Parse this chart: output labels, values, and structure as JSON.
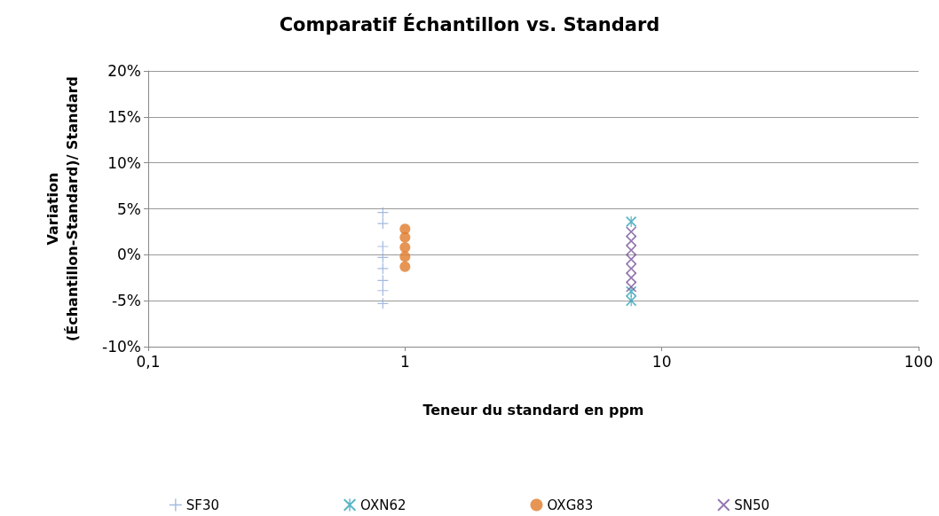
{
  "chart_data": {
    "type": "scatter",
    "title": "Comparatif Échantillon vs. Standard",
    "xlabel": "Teneur du standard en ppm",
    "ylabel": "Variation\n(Échantillon-Standard)/ Standard",
    "log": "x",
    "xlim": [
      0.1,
      100
    ],
    "xticks": [
      {
        "value": 0.1,
        "label": "0,1"
      },
      1,
      10,
      100
    ],
    "ylim": [
      -10,
      20
    ],
    "yticks": [
      {
        "value": -10,
        "label": "-10%"
      },
      {
        "value": -5,
        "label": "-5%"
      },
      {
        "value": 0,
        "label": "0%"
      },
      {
        "value": 5,
        "label": "5%"
      },
      {
        "value": 10,
        "label": "10%"
      },
      {
        "value": 15,
        "label": "15%"
      },
      {
        "value": 20,
        "label": "20%"
      }
    ],
    "grid": "y",
    "legend": "bottom",
    "series": [
      {
        "name": "SF30",
        "color": "#8ea9d8",
        "marker": "cross",
        "x": [
          0.82,
          0.82,
          0.82,
          0.82,
          0.82,
          0.82,
          0.82,
          0.82
        ],
        "values": [
          4.6,
          3.4,
          0.9,
          -0.3,
          -1.5,
          -2.8,
          -3.9,
          -5.3
        ]
      },
      {
        "name": "OXN62",
        "color": "#31a2b8",
        "marker": "star",
        "x": [
          7.6,
          7.6,
          7.6
        ],
        "values": [
          3.6,
          -4.0,
          -5.0
        ]
      },
      {
        "name": "OXG83",
        "color": "#e07b2a",
        "marker": "circle",
        "x": [
          1.0,
          1.0,
          1.0,
          1.0,
          1.0
        ],
        "values": [
          2.8,
          1.9,
          0.8,
          -0.2,
          -1.3
        ]
      },
      {
        "name": "SN50",
        "color": "#7b569e",
        "marker": "x",
        "x": [
          7.6,
          7.6,
          7.6,
          7.6,
          7.6,
          7.6,
          7.6
        ],
        "values": [
          2.5,
          1.5,
          0.5,
          -0.5,
          -1.5,
          -2.5,
          -3.5
        ]
      }
    ]
  }
}
